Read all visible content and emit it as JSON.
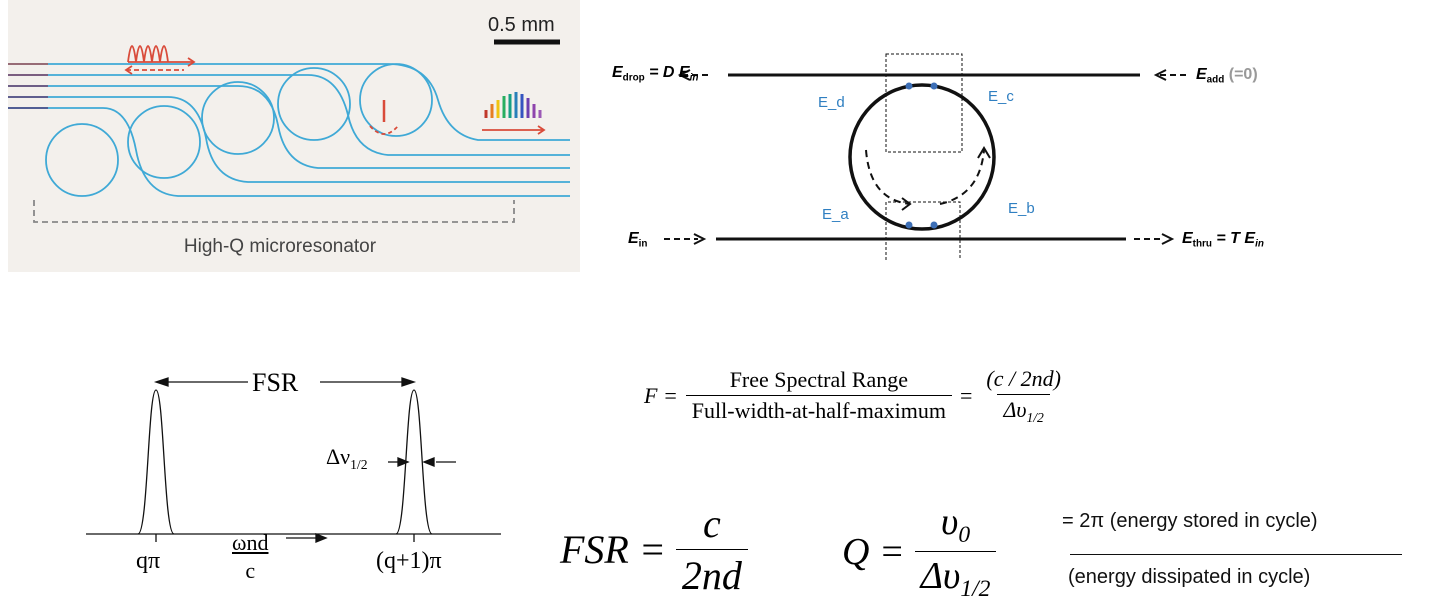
{
  "microresonator_panel": {
    "scale_label": "0.5 mm",
    "bottom_label": "High-Q microresonator"
  },
  "ring_coupler": {
    "e_drop": {
      "symbol": "E",
      "sub": "drop",
      "rest": " = D E",
      "rest_sub": "in"
    },
    "e_add": {
      "symbol": "E",
      "sub": "add",
      "note": "(=0)"
    },
    "e_in": {
      "symbol": "E",
      "sub": "in"
    },
    "e_thru": {
      "symbol": "E",
      "sub": "thru",
      "rest": " = T E",
      "rest_sub": "in"
    },
    "points": {
      "a": "E_a",
      "b": "E_b",
      "c": "E_c",
      "d": "E_d"
    }
  },
  "spectrum": {
    "fsr_label": "FSR",
    "linewidth_label": "Δν",
    "linewidth_sub": "1/2",
    "axis_left": "qπ",
    "axis_right": "(q+1)π",
    "axis_var_num": "ωnd",
    "axis_var_den": "c"
  },
  "equations": {
    "finesse": {
      "lhs": "F =",
      "num": "Free Spectral Range",
      "den": "Full-width-at-half-maximum",
      "eq": "=",
      "num2": "(c / 2nd)",
      "den2": "Δυ",
      "den2_sub": "1/2"
    },
    "fsr": {
      "lhs": "FSR =",
      "num": "c",
      "den": "2nd"
    },
    "q": {
      "lhs": "Q =",
      "num": "υ",
      "num_sub": "0",
      "den": "Δυ",
      "den_sub": "1/2"
    },
    "q_energy": {
      "prefix": "= 2π (energy stored in cycle)",
      "denominator": "(energy dissipated in cycle)"
    }
  }
}
